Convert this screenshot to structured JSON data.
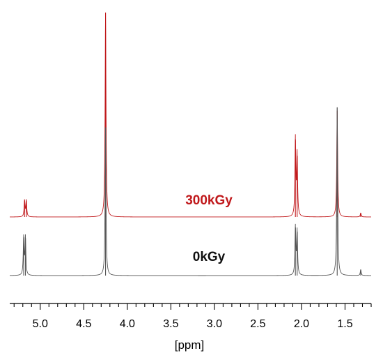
{
  "chart_data": {
    "type": "line",
    "xlabel": "[ppm]",
    "ylabel": "",
    "title": "",
    "xlim": [
      5.35,
      1.2
    ],
    "x_reversed": true,
    "x_ticks": [
      "5.0",
      "4.5",
      "4.0",
      "3.5",
      "3.0",
      "2.5",
      "2.0",
      "1.5"
    ],
    "grid": false,
    "series": [
      {
        "name": "300kGy",
        "color": "#c0181b",
        "peaks": [
          {
            "ppm": 5.18,
            "height": 0.08
          },
          {
            "ppm": 5.16,
            "height": 0.08
          },
          {
            "ppm": 4.25,
            "height": 1.0
          },
          {
            "ppm": 2.07,
            "height": 0.38
          },
          {
            "ppm": 2.05,
            "height": 0.3
          },
          {
            "ppm": 1.59,
            "height": 0.52
          },
          {
            "ppm": 1.32,
            "height": 0.02
          }
        ]
      },
      {
        "name": "0kGy",
        "color": "#555555",
        "peaks": [
          {
            "ppm": 5.19,
            "height": 0.19
          },
          {
            "ppm": 5.17,
            "height": 0.19
          },
          {
            "ppm": 4.25,
            "height": 0.74
          },
          {
            "ppm": 2.07,
            "height": 0.24
          },
          {
            "ppm": 2.05,
            "height": 0.22
          },
          {
            "ppm": 1.59,
            "height": 0.84
          },
          {
            "ppm": 1.32,
            "height": 0.03
          }
        ]
      }
    ]
  }
}
